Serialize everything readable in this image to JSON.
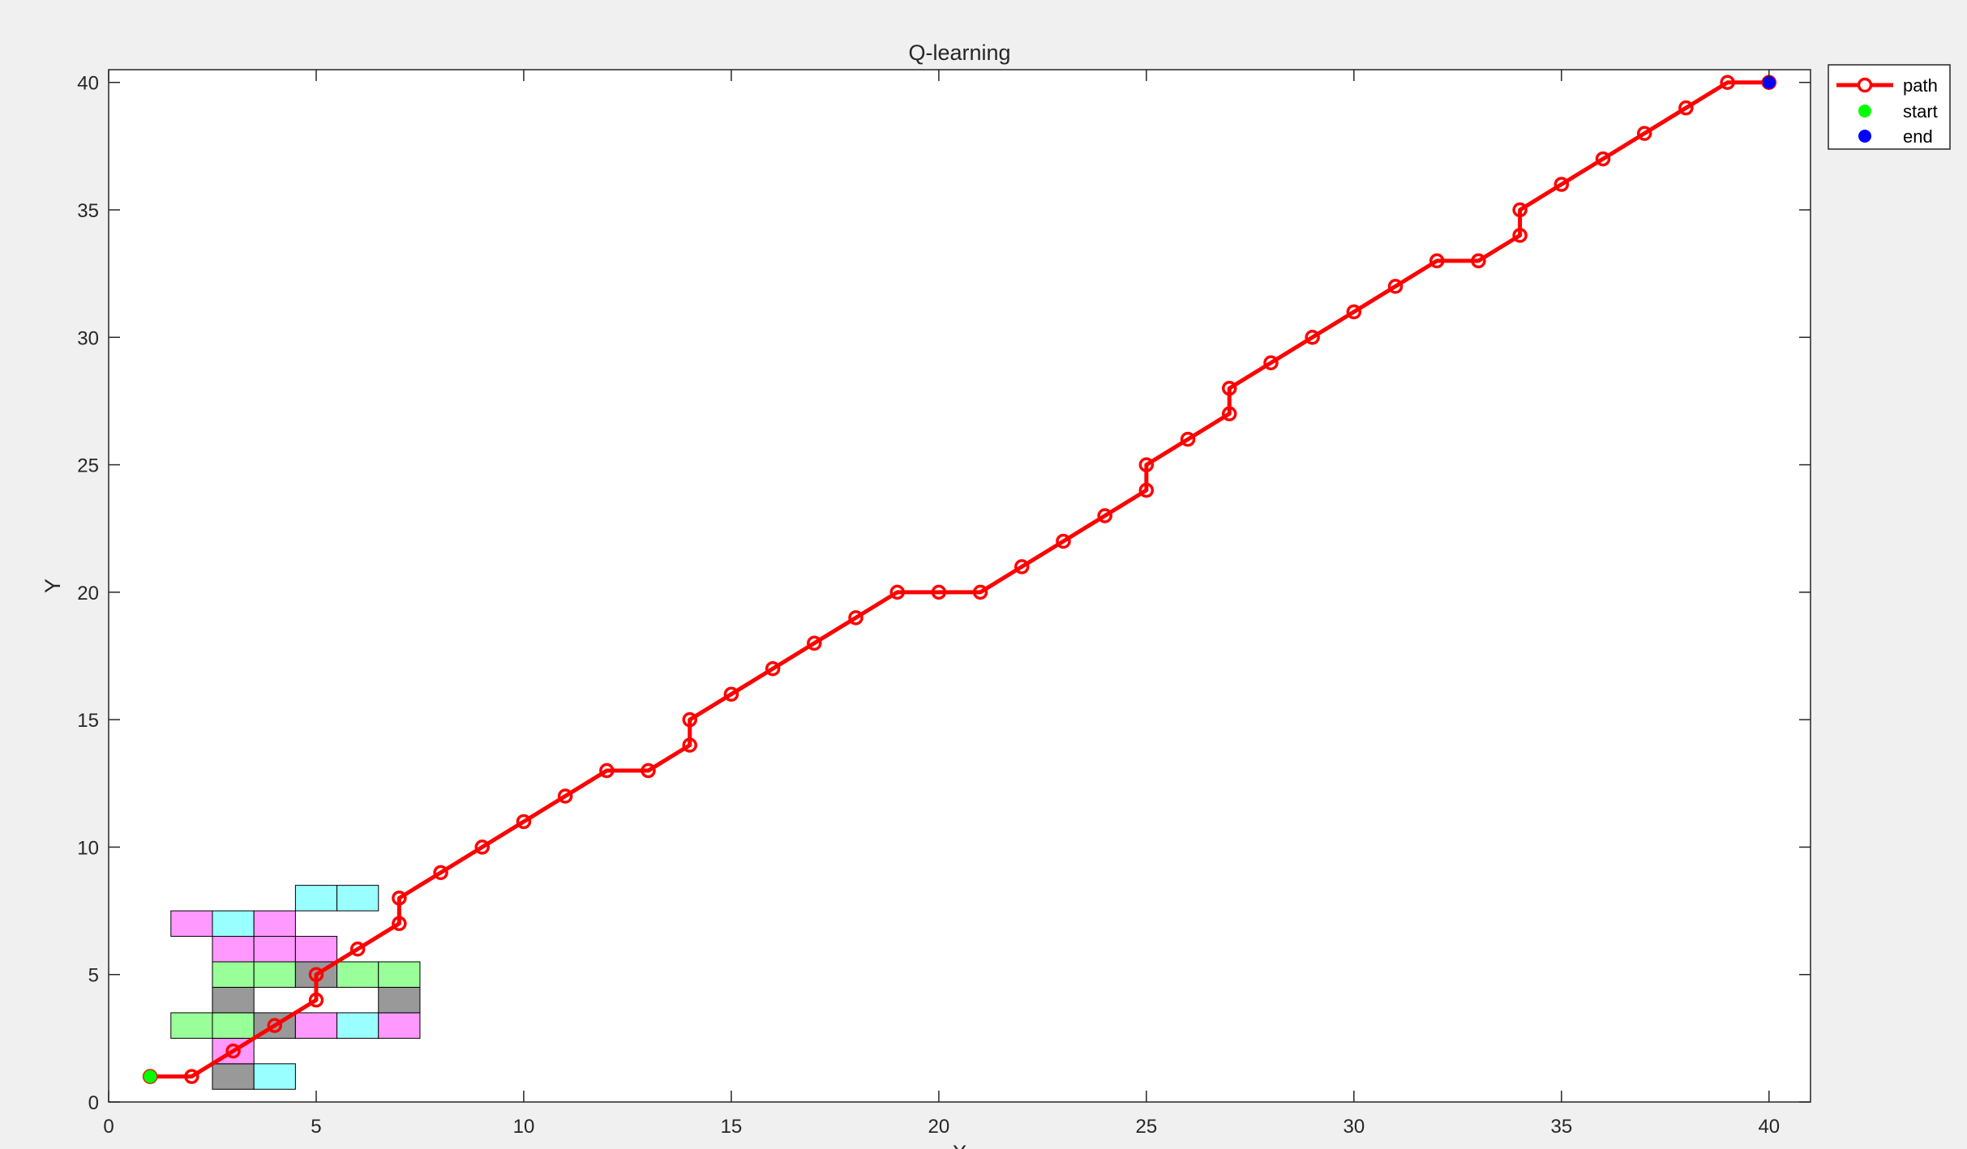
{
  "chart_data": {
    "type": "line",
    "title": "Q-learning",
    "xlabel": "X",
    "ylabel": "Y",
    "xlim": [
      0,
      41
    ],
    "ylim": [
      0,
      40.5
    ],
    "xticks": [
      0,
      5,
      10,
      15,
      20,
      25,
      30,
      35,
      40
    ],
    "yticks": [
      0,
      5,
      10,
      15,
      20,
      25,
      30,
      35,
      40
    ],
    "grid": false,
    "legend_position": "top-right-outside",
    "legend": [
      "path",
      "start",
      "end"
    ],
    "series": [
      {
        "name": "path",
        "color": "#ff0000",
        "marker": "circle",
        "points": [
          [
            1,
            1
          ],
          [
            2,
            1
          ],
          [
            3,
            2
          ],
          [
            4,
            3
          ],
          [
            5,
            4
          ],
          [
            5,
            5
          ],
          [
            6,
            6
          ],
          [
            7,
            7
          ],
          [
            7,
            8
          ],
          [
            8,
            9
          ],
          [
            9,
            10
          ],
          [
            10,
            11
          ],
          [
            11,
            12
          ],
          [
            12,
            13
          ],
          [
            13,
            13
          ],
          [
            14,
            14
          ],
          [
            14,
            15
          ],
          [
            15,
            16
          ],
          [
            16,
            17
          ],
          [
            17,
            18
          ],
          [
            18,
            19
          ],
          [
            19,
            20
          ],
          [
            20,
            20
          ],
          [
            21,
            20
          ],
          [
            22,
            21
          ],
          [
            23,
            22
          ],
          [
            24,
            23
          ],
          [
            25,
            24
          ],
          [
            25,
            25
          ],
          [
            26,
            26
          ],
          [
            27,
            27
          ],
          [
            27,
            28
          ],
          [
            28,
            29
          ],
          [
            29,
            30
          ],
          [
            30,
            31
          ],
          [
            31,
            32
          ],
          [
            32,
            33
          ],
          [
            33,
            33
          ],
          [
            34,
            34
          ],
          [
            34,
            35
          ],
          [
            35,
            36
          ],
          [
            36,
            37
          ],
          [
            37,
            38
          ],
          [
            38,
            39
          ],
          [
            39,
            40
          ],
          [
            40,
            40
          ]
        ]
      },
      {
        "name": "start",
        "color": "#00ff00",
        "points": [
          [
            1,
            1
          ]
        ]
      },
      {
        "name": "end",
        "color": "#0000ff",
        "points": [
          [
            40,
            40
          ]
        ]
      }
    ],
    "obstacle_colors": {
      "p": "#ff99ff",
      "g": "#99ff99",
      "b": "#aaaaff",
      "y": "#ffff99",
      "k": "#999999",
      "c": "#99ffff"
    },
    "obstacle_blocks": [
      {
        "x": 1,
        "y": 1,
        "rows": [
          "..kc.....",
          "..p......",
          ".ggkpcp..",
          "..k...k..",
          "..ggkgg..",
          "..ppp....",
          ".pcp.....",
          "....cc..."
        ]
      }
    ]
  }
}
